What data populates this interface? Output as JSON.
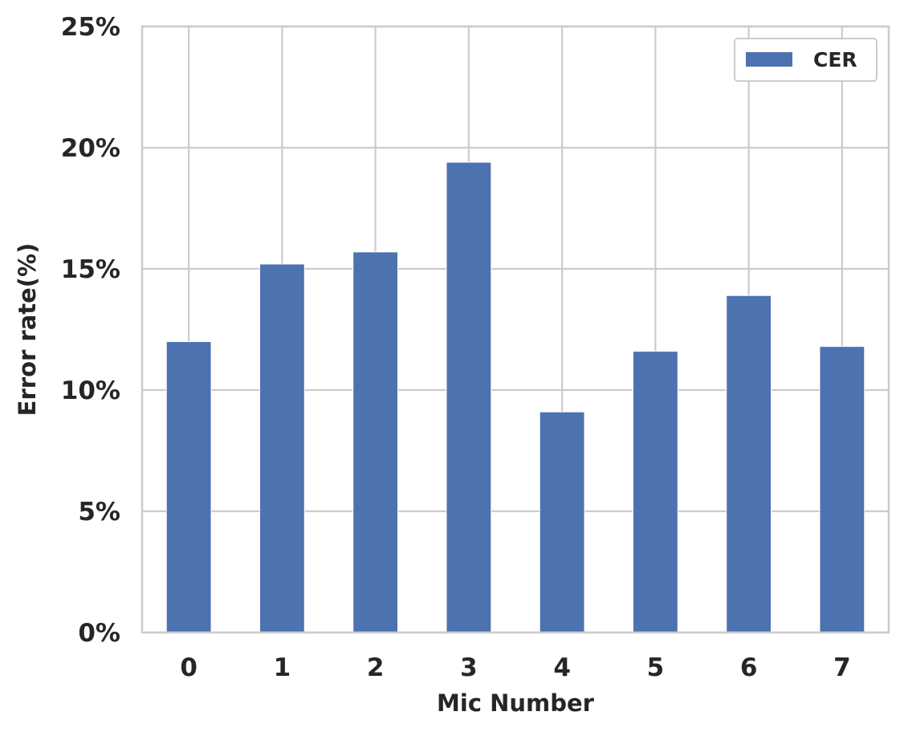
{
  "chart_data": {
    "type": "bar",
    "title": "",
    "xlabel": "Mic Number",
    "ylabel": "Error rate(%)",
    "categories": [
      "0",
      "1",
      "2",
      "3",
      "4",
      "5",
      "6",
      "7"
    ],
    "series": [
      {
        "name": "CER",
        "values": [
          12.0,
          15.2,
          15.7,
          19.4,
          9.1,
          11.6,
          13.9,
          11.8
        ],
        "color": "#4c72b0"
      }
    ],
    "ylim": [
      0,
      25
    ],
    "yticks": [
      0,
      5,
      10,
      15,
      20,
      25
    ],
    "ytick_labels": [
      "0%",
      "5%",
      "10%",
      "15%",
      "20%",
      "25%"
    ],
    "grid": true,
    "legend_position": "top-right"
  }
}
